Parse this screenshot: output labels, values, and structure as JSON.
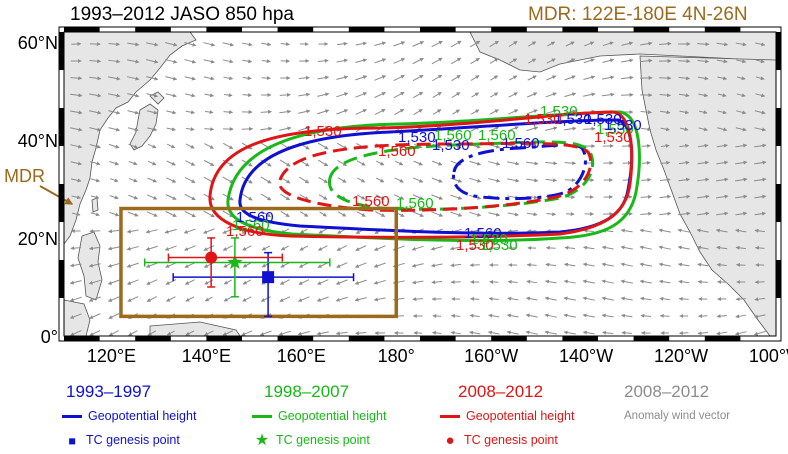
{
  "header": {
    "title": "1993–2012 JASO 850 hpa",
    "region_label": "MDR: 122E-180E 4N-26N",
    "mdr_label": "MDR"
  },
  "map": {
    "lon_range": [
      110,
      260
    ],
    "lat_range": [
      0,
      62
    ],
    "lon_ticks": [
      "120°E",
      "140°E",
      "160°E",
      "180°",
      "160°W",
      "140°W",
      "120°W",
      "100°W"
    ],
    "lat_ticks": [
      "0°",
      "20°N",
      "40°N",
      "60°N"
    ],
    "mdr_box": {
      "lon": [
        122,
        180
      ],
      "lat": [
        4,
        26
      ]
    },
    "colors": {
      "blue": "#1010d0",
      "green": "#18b818",
      "red": "#e01515",
      "gray": "#8c8c8c",
      "mdr": "#9c6a1c",
      "land": "#e6e6e6"
    }
  },
  "contours": [
    {
      "period": "1993–1997",
      "value_labels": [
        "1,530",
        "1,530",
        "1,530",
        "1,530",
        "1,560",
        "1,560",
        "1,560",
        "1,530"
      ]
    },
    {
      "period": "1998–2007",
      "value_labels": [
        "1,530",
        "1,560",
        "1,530",
        "1,530",
        "1,560",
        "1,560",
        "1,560",
        "1,530"
      ]
    },
    {
      "period": "2008–2012",
      "value_labels": [
        "1,530",
        "1,560",
        "1,530",
        "1,530",
        "1,560",
        "1,560",
        "1,530"
      ]
    }
  ],
  "tc_genesis": [
    {
      "period": "1993–1997",
      "lon": 153,
      "lat": 12,
      "lon_err": [
        133,
        171
      ],
      "lat_err": [
        4,
        17
      ]
    },
    {
      "period": "1998–2007",
      "lon": 146,
      "lat": 15,
      "lon_err": [
        127,
        166
      ],
      "lat_err": [
        8,
        20
      ]
    },
    {
      "period": "2008–2012",
      "lon": 141,
      "lat": 16,
      "lon_err": [
        132,
        156
      ],
      "lat_err": [
        10,
        20
      ]
    }
  ],
  "legend": [
    {
      "period": "1993–1997",
      "line_label": "Geopotential height",
      "symbol_label": "TC genesis point",
      "symbol": "square",
      "color": "#1010d0"
    },
    {
      "period": "1998–2007",
      "line_label": "Geopotential height",
      "symbol_label": "TC genesis point",
      "symbol": "star",
      "color": "#18b818"
    },
    {
      "period": "2008–2012",
      "line_label": "Geopotential height",
      "symbol_label": "TC genesis point",
      "symbol": "circle",
      "color": "#e01515"
    },
    {
      "period": "2008–2012",
      "line_label": "Anomaly wind vector",
      "color": "#8c8c8c"
    }
  ]
}
